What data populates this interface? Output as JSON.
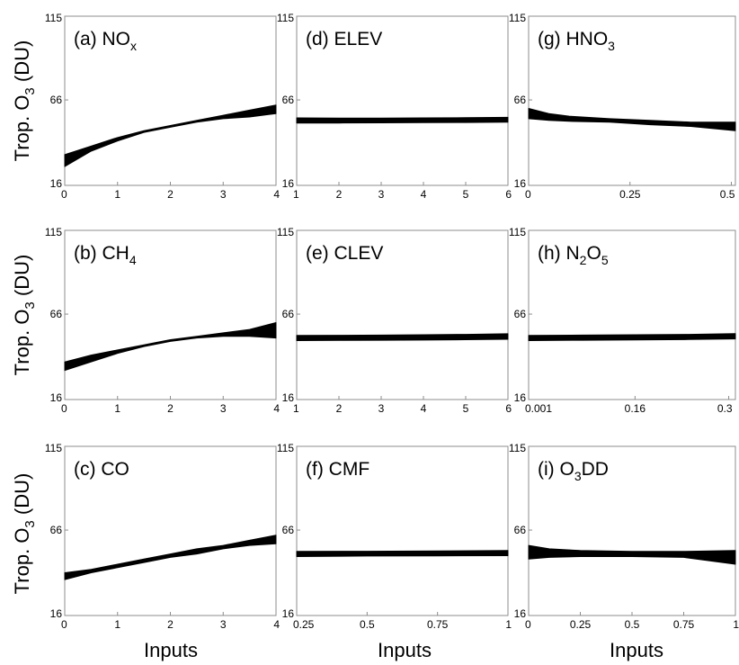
{
  "figure": {
    "ylabel_prefix": "Trop. O",
    "ylabel_sub": "3",
    "ylabel_suffix": " (DU)",
    "xlabel": "Inputs"
  },
  "chart_data": [
    {
      "id": "a",
      "type": "line",
      "label": "(a) NO",
      "label_sub": "x",
      "label_after": "",
      "ylim": [
        16,
        115
      ],
      "xlim": [
        0,
        4
      ],
      "xticks": [
        0,
        1,
        2,
        3,
        4
      ],
      "xtick_labels": [
        "0",
        "1",
        "2",
        "3",
        "4"
      ],
      "yticks": [
        16,
        66,
        115
      ],
      "ytick_labels": [
        "16",
        "66",
        "115"
      ],
      "x": [
        0,
        0.5,
        1,
        1.5,
        2,
        2.5,
        3,
        3.5,
        4
      ],
      "band_low": [
        27,
        36,
        42,
        47,
        50,
        53,
        55,
        56,
        58
      ],
      "band_high": [
        34,
        39,
        44,
        48,
        51,
        54,
        57,
        60,
        63
      ]
    },
    {
      "id": "b",
      "type": "line",
      "label": "(b) CH",
      "label_sub": "4",
      "label_after": "",
      "ylim": [
        16,
        115
      ],
      "xlim": [
        0,
        4
      ],
      "xticks": [
        0,
        1,
        2,
        3,
        4
      ],
      "xtick_labels": [
        "0",
        "1",
        "2",
        "3",
        "4"
      ],
      "yticks": [
        16,
        66,
        115
      ],
      "ytick_labels": [
        "16",
        "66",
        "115"
      ],
      "x": [
        0,
        0.5,
        1,
        1.5,
        2,
        2.5,
        3,
        3.5,
        4
      ],
      "band_low": [
        33,
        38,
        43,
        47,
        50,
        52,
        53,
        53,
        52
      ],
      "band_high": [
        38,
        42,
        45,
        48,
        51,
        53,
        55,
        57,
        61
      ]
    },
    {
      "id": "c",
      "type": "line",
      "label": "(c) CO",
      "label_sub": "",
      "label_after": "",
      "ylim": [
        16,
        115
      ],
      "xlim": [
        0,
        4
      ],
      "xticks": [
        0,
        1,
        2,
        3,
        4
      ],
      "xtick_labels": [
        "0",
        "1",
        "2",
        "3",
        "4"
      ],
      "yticks": [
        16,
        66,
        115
      ],
      "ytick_labels": [
        "16",
        "66",
        "115"
      ],
      "x": [
        0,
        0.5,
        1,
        1.5,
        2,
        2.5,
        3,
        3.5,
        4
      ],
      "band_low": [
        37,
        41,
        44,
        47,
        50,
        52,
        55,
        57,
        58
      ],
      "band_high": [
        41,
        43,
        46,
        49,
        52,
        55,
        57,
        60,
        63
      ]
    },
    {
      "id": "d",
      "type": "line",
      "label": "(d) ELEV",
      "label_sub": "",
      "label_after": "",
      "ylim": [
        16,
        115
      ],
      "xlim": [
        1,
        6
      ],
      "xticks": [
        1,
        2,
        3,
        4,
        5,
        6
      ],
      "xtick_labels": [
        "1",
        "2",
        "3",
        "4",
        "5",
        "6"
      ],
      "yticks": [
        16,
        66,
        115
      ],
      "ytick_labels": [
        "16",
        "66",
        "115"
      ],
      "x": [
        1,
        2,
        3,
        4,
        5,
        6
      ],
      "band_low": [
        52.5,
        52.5,
        52.6,
        52.7,
        52.8,
        53
      ],
      "band_high": [
        55.5,
        55.4,
        55.4,
        55.5,
        55.6,
        55.8
      ]
    },
    {
      "id": "e",
      "type": "line",
      "label": "(e) CLEV",
      "label_sub": "",
      "label_after": "",
      "ylim": [
        16,
        115
      ],
      "xlim": [
        1,
        6
      ],
      "xticks": [
        1,
        2,
        3,
        4,
        5,
        6
      ],
      "xtick_labels": [
        "1",
        "2",
        "3",
        "4",
        "5",
        "6"
      ],
      "yticks": [
        16,
        66,
        115
      ],
      "ytick_labels": [
        "16",
        "66",
        "115"
      ],
      "x": [
        1,
        2,
        3,
        4,
        5,
        6
      ],
      "band_low": [
        50.5,
        50.6,
        50.7,
        50.8,
        51,
        51.3
      ],
      "band_high": [
        53.5,
        53.6,
        53.7,
        53.9,
        54.1,
        54.5
      ]
    },
    {
      "id": "f",
      "type": "line",
      "label": "(f) CMF",
      "label_sub": "",
      "label_after": "",
      "ylim": [
        16,
        115
      ],
      "xlim": [
        0.25,
        1
      ],
      "xticks": [
        0.25,
        0.5,
        0.75,
        1
      ],
      "xtick_labels": [
        "0.25",
        "0.5",
        "0.75",
        "1"
      ],
      "yticks": [
        16,
        66,
        115
      ],
      "ytick_labels": [
        "16",
        "66",
        "115"
      ],
      "x": [
        0.25,
        0.5,
        0.75,
        1
      ],
      "band_low": [
        50.5,
        50.8,
        50.9,
        51
      ],
      "band_high": [
        53.5,
        53.6,
        53.8,
        54
      ]
    },
    {
      "id": "g",
      "type": "line",
      "label": "(g) HNO",
      "label_sub": "3",
      "label_after": "",
      "ylim": [
        16,
        115
      ],
      "xlim": [
        0,
        0.51
      ],
      "xticks": [
        0,
        0.25,
        0.5
      ],
      "xtick_labels": [
        "0",
        "0.25",
        "0.5"
      ],
      "yticks": [
        16,
        66,
        115
      ],
      "ytick_labels": [
        "16",
        "66",
        "115"
      ],
      "x": [
        0,
        0.05,
        0.1,
        0.2,
        0.3,
        0.4,
        0.51
      ],
      "band_low": [
        55,
        54,
        53.5,
        53,
        51.5,
        50.5,
        48
      ],
      "band_high": [
        61,
        58,
        56.5,
        55,
        54,
        53,
        53
      ]
    },
    {
      "id": "h",
      "type": "line",
      "label": "(h) N",
      "label_sub": "2",
      "label_after": "O",
      "label_sub2": "5",
      "ylim": [
        16,
        115
      ],
      "xlim": [
        0.001,
        0.31
      ],
      "xticks": [
        0.001,
        0.16,
        0.3
      ],
      "xtick_labels": [
        "0.001",
        "0.16",
        "0.3"
      ],
      "yticks": [
        16,
        66,
        115
      ],
      "ytick_labels": [
        "16",
        "66",
        "115"
      ],
      "x": [
        0.001,
        0.08,
        0.16,
        0.24,
        0.31
      ],
      "band_low": [
        50.5,
        50.7,
        50.9,
        51.1,
        51.5
      ],
      "band_high": [
        53.5,
        53.7,
        53.9,
        54.1,
        54.6
      ]
    },
    {
      "id": "i",
      "type": "line",
      "label": "(i) O",
      "label_sub": "3",
      "label_after": "DD",
      "ylim": [
        16,
        115
      ],
      "xlim": [
        0,
        1
      ],
      "xticks": [
        0,
        0.25,
        0.5,
        0.75,
        1
      ],
      "xtick_labels": [
        "0",
        "0.25",
        "0.5",
        "0.75",
        "1"
      ],
      "yticks": [
        16,
        66,
        115
      ],
      "ytick_labels": [
        "16",
        "66",
        "115"
      ],
      "x": [
        0,
        0.1,
        0.25,
        0.5,
        0.75,
        1
      ],
      "band_low": [
        49,
        50,
        50.5,
        50.5,
        50,
        46
      ],
      "band_high": [
        57,
        55,
        54,
        53.5,
        53.5,
        54
      ]
    }
  ]
}
